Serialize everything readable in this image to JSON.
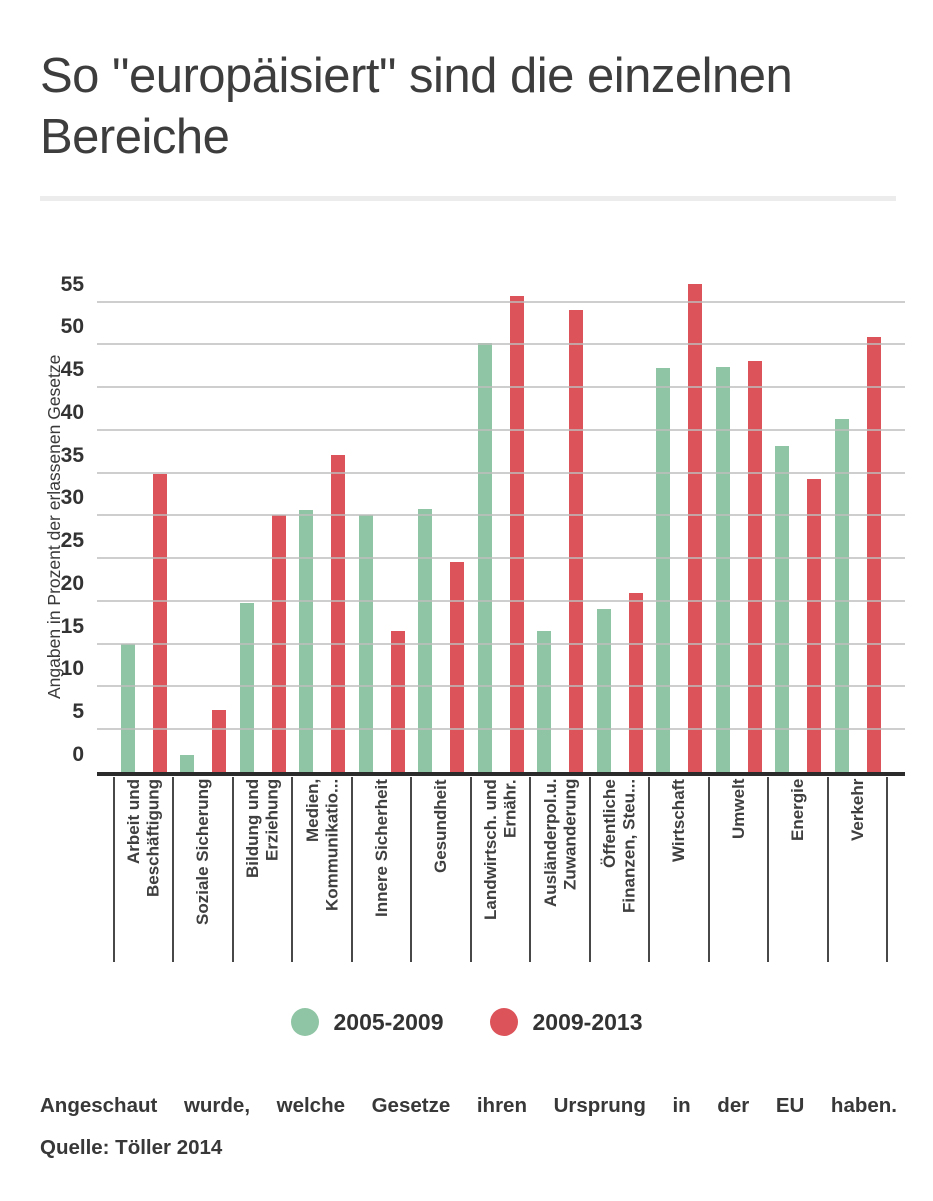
{
  "header": {
    "title": "So \"europäisiert\" sind die einzelnen Bereiche"
  },
  "footer": {
    "note": "Angeschaut wurde, welche Gesetze ihren Ursprung in der EU haben.",
    "source": "Quelle: Töller 2014"
  },
  "legend": {
    "items": [
      {
        "label": "2005-2009",
        "color": "#8fc5a4"
      },
      {
        "label": "2009-2013",
        "color": "#dc545a"
      }
    ]
  },
  "chart_data": {
    "type": "bar",
    "title": "So \"europäisiert\" sind die einzelnen Bereiche",
    "xlabel": "",
    "ylabel": "Angaben in Prozent der erlassenen Gesetze",
    "ylim": [
      0,
      57.5
    ],
    "yticks": [
      0,
      5,
      10,
      15,
      20,
      25,
      30,
      35,
      40,
      45,
      50,
      55
    ],
    "grid": true,
    "legend_position": "bottom",
    "categories": [
      "Arbeit und Beschäftigung",
      "Soziale Sicherung",
      "Bildung und Erziehung",
      "Medien, Kommunikatio...",
      "Innere Sicherheit",
      "Gesundheit",
      "Landwirtsch. und Ernähr.",
      "Ausländerpol.u. Zuwanderung",
      "Öffentliche Finanzen, Steu...",
      "Wirtschaft",
      "Umwelt",
      "Energie",
      "Verkehr"
    ],
    "category_label_lines": [
      [
        "Arbeit und",
        "Beschäftigung"
      ],
      [
        "Soziale Sicherung"
      ],
      [
        "Bildung und",
        "Erziehung"
      ],
      [
        "Medien,",
        "Kommunikatio..."
      ],
      [
        "Innere Sicherheit"
      ],
      [
        "Gesundheit"
      ],
      [
        "Landwirtsch. und",
        "Ernähr."
      ],
      [
        "Ausländerpol.u.",
        "Zuwanderung"
      ],
      [
        "Öffentliche",
        "Finanzen, Steu..."
      ],
      [
        "Wirtschaft"
      ],
      [
        "Umwelt"
      ],
      [
        "Energie"
      ],
      [
        "Verkehr"
      ]
    ],
    "series": [
      {
        "name": "2005-2009",
        "color": "#8fc5a4",
        "values": [
          15,
          2,
          19.8,
          30.6,
          30,
          30.7,
          50.2,
          16.5,
          19.1,
          47.2,
          47.3,
          38.1,
          41.3
        ]
      },
      {
        "name": "2009-2013",
        "color": "#dc545a",
        "values": [
          34.8,
          7.2,
          30,
          37.1,
          16.5,
          24.6,
          55.7,
          54,
          20.9,
          57.1,
          48.1,
          34.3,
          50.9
        ]
      }
    ]
  }
}
